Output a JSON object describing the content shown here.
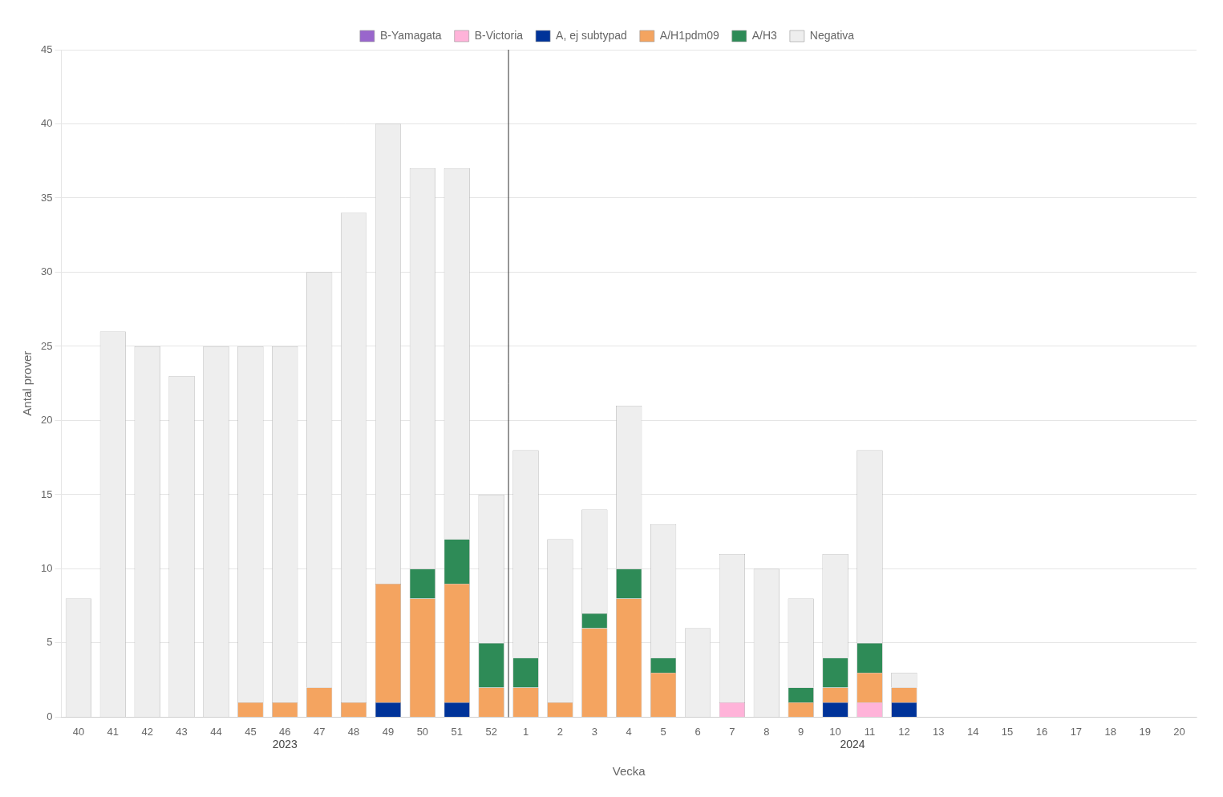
{
  "chart_data": {
    "type": "bar",
    "stacked": true,
    "categories": [
      "40",
      "41",
      "42",
      "43",
      "44",
      "45",
      "46",
      "47",
      "48",
      "49",
      "50",
      "51",
      "52",
      "1",
      "2",
      "3",
      "4",
      "5",
      "6",
      "7",
      "8",
      "9",
      "10",
      "11",
      "12",
      "13",
      "14",
      "15",
      "16",
      "17",
      "18",
      "19",
      "20"
    ],
    "series": [
      {
        "name": "B-Yamagata",
        "color": "#9966CC",
        "values": [
          0,
          0,
          0,
          0,
          0,
          0,
          0,
          0,
          0,
          0,
          0,
          0,
          0,
          0,
          0,
          0,
          0,
          0,
          0,
          0,
          0,
          0,
          0,
          0,
          0,
          0,
          0,
          0,
          0,
          0,
          0,
          0,
          0
        ]
      },
      {
        "name": "B-Victoria",
        "color": "#FFB3D9",
        "values": [
          0,
          0,
          0,
          0,
          0,
          0,
          0,
          0,
          0,
          0,
          0,
          0,
          0,
          0,
          0,
          0,
          0,
          0,
          0,
          1,
          0,
          0,
          0,
          1,
          0,
          0,
          0,
          0,
          0,
          0,
          0,
          0,
          0
        ]
      },
      {
        "name": "A, ej subtypad",
        "color": "#003399",
        "values": [
          0,
          0,
          0,
          0,
          0,
          0,
          0,
          0,
          0,
          1,
          0,
          1,
          0,
          0,
          0,
          0,
          0,
          0,
          0,
          0,
          0,
          0,
          1,
          0,
          1,
          0,
          0,
          0,
          0,
          0,
          0,
          0,
          0
        ]
      },
      {
        "name": "A/H1pdm09",
        "color": "#F4A460",
        "values": [
          0,
          0,
          0,
          0,
          0,
          1,
          1,
          2,
          1,
          8,
          8,
          8,
          2,
          2,
          1,
          6,
          8,
          3,
          0,
          0,
          0,
          1,
          1,
          2,
          1,
          0,
          0,
          0,
          0,
          0,
          0,
          0,
          0
        ]
      },
      {
        "name": "A/H3",
        "color": "#2E8B57",
        "values": [
          0,
          0,
          0,
          0,
          0,
          0,
          0,
          0,
          0,
          0,
          2,
          3,
          3,
          2,
          0,
          1,
          2,
          1,
          0,
          0,
          0,
          1,
          2,
          2,
          0,
          0,
          0,
          0,
          0,
          0,
          0,
          0,
          0
        ]
      },
      {
        "name": "Negativa",
        "color": "#EEEEEE",
        "values": [
          8,
          26,
          25,
          23,
          25,
          24,
          24,
          28,
          33,
          31,
          27,
          25,
          10,
          14,
          11,
          7,
          11,
          9,
          6,
          10,
          10,
          6,
          7,
          13,
          1,
          0,
          0,
          0,
          0,
          0,
          0,
          0,
          0
        ]
      }
    ],
    "xlabel": "Vecka",
    "ylabel": "Antal prover",
    "annotations": [
      {
        "text": "2023",
        "from": "40",
        "to": "52"
      },
      {
        "text": "2024",
        "from": "1",
        "to": "20"
      }
    ],
    "ylim": [
      0,
      45
    ],
    "yticks": [
      0,
      5,
      10,
      15,
      20,
      25,
      30,
      35,
      40,
      45
    ],
    "grid": true,
    "legend": "top"
  }
}
